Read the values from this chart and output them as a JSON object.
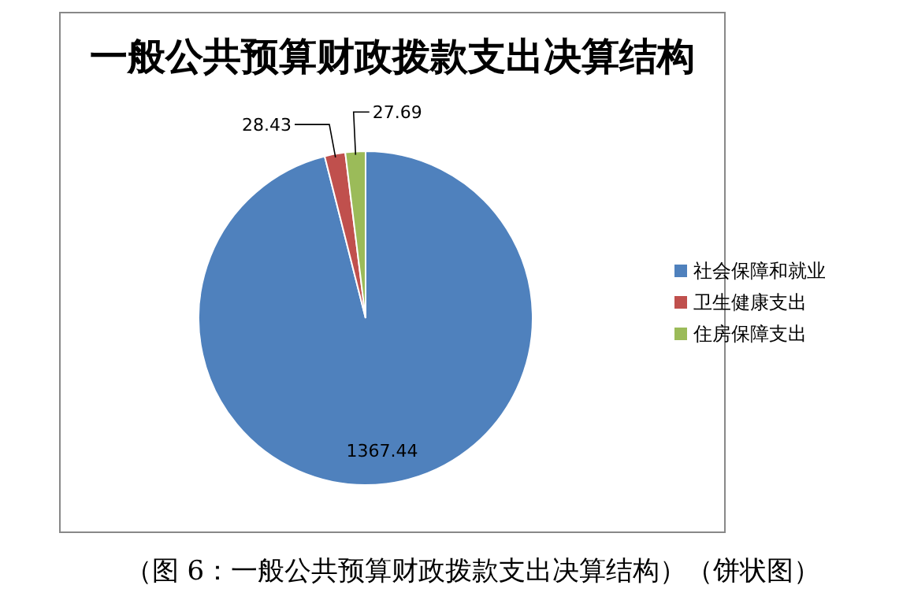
{
  "chart_data": {
    "type": "pie",
    "title": "一般公共预算财政拨款支出决算结构",
    "categories": [
      "社会保障和就业",
      "卫生健康支出",
      "住房保障支出"
    ],
    "values": [
      1367.44,
      28.43,
      27.69
    ],
    "colors": [
      "#4f81bd",
      "#c0504d",
      "#9bbb59"
    ],
    "data_labels": true,
    "legend": "right",
    "annotations": [
      "（图 6：一般公共预算财政拨款支出决算结构）（饼状图）"
    ]
  }
}
